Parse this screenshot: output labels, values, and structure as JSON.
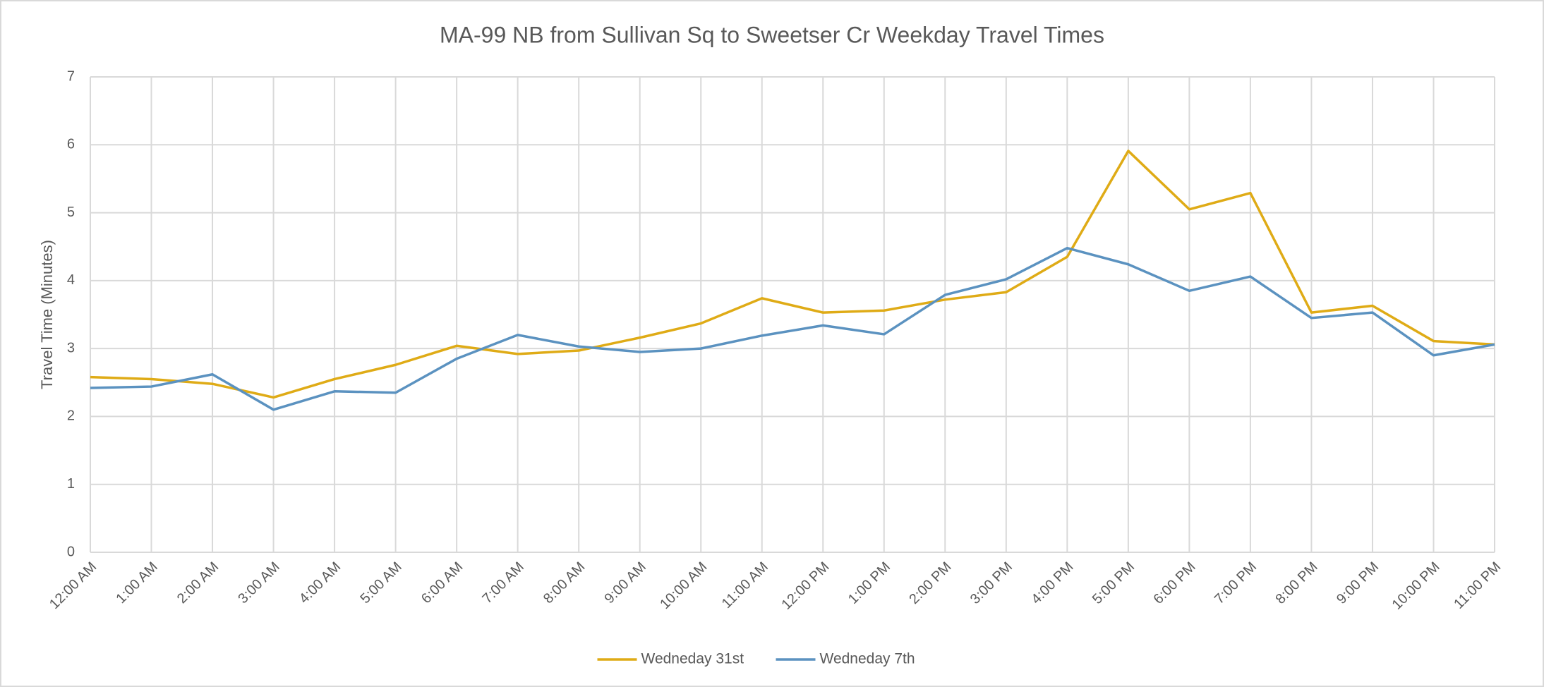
{
  "chart_data": {
    "type": "line",
    "title": "MA-99 NB from Sullivan Sq to Sweetser Cr Weekday Travel Times",
    "y_label": "Travel Time (Minutes)",
    "categories": [
      "12:00 AM",
      "1:00 AM",
      "2:00 AM",
      "3:00 AM",
      "4:00 AM",
      "5:00 AM",
      "6:00 AM",
      "7:00 AM",
      "8:00 AM",
      "9:00 AM",
      "10:00 AM",
      "11:00 AM",
      "12:00 PM",
      "1:00 PM",
      "2:00 PM",
      "3:00 PM",
      "4:00 PM",
      "5:00 PM",
      "6:00 PM",
      "7:00 PM",
      "8:00 PM",
      "9:00 PM",
      "10:00 PM",
      "11:00 PM"
    ],
    "series": [
      {
        "name": "Wedneday 31st",
        "color": "#dfab16",
        "values": [
          2.58,
          2.55,
          2.48,
          2.28,
          2.55,
          2.76,
          3.04,
          2.92,
          2.97,
          3.16,
          3.37,
          3.74,
          3.53,
          3.56,
          3.72,
          3.83,
          4.35,
          5.91,
          5.05,
          5.29,
          3.53,
          3.63,
          3.11,
          3.06
        ]
      },
      {
        "name": "Wedneday 7th",
        "color": "#5b92c0",
        "values": [
          2.42,
          2.44,
          2.62,
          2.1,
          2.37,
          2.35,
          2.85,
          3.2,
          3.03,
          2.95,
          3.0,
          3.19,
          3.34,
          3.21,
          3.79,
          4.02,
          4.48,
          4.24,
          3.85,
          4.06,
          3.45,
          3.53,
          2.9,
          3.06
        ]
      }
    ],
    "ylim": [
      0,
      7
    ],
    "yticks": [
      0,
      1,
      2,
      3,
      4,
      5,
      6,
      7
    ],
    "grid": true,
    "legend": "bottom"
  }
}
